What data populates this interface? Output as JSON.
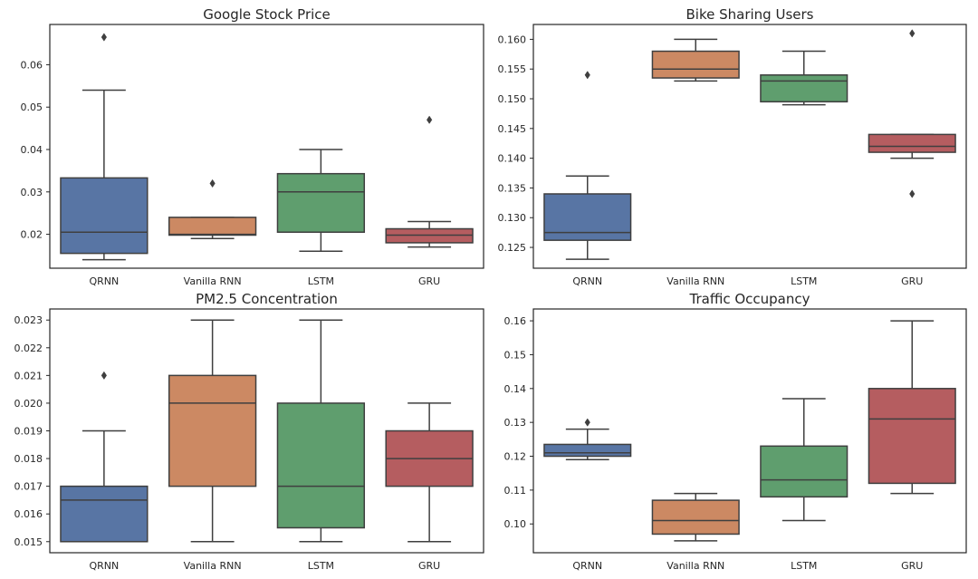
{
  "chart_data": [
    {
      "type": "box",
      "title": "Google Stock Price",
      "categories": [
        "QRNN",
        "Vanilla RNN",
        "LSTM",
        "GRU"
      ],
      "ylim": [
        0.012,
        0.0695
      ],
      "yticks": [
        0.02,
        0.03,
        0.04,
        0.05,
        0.06
      ],
      "yticklabels": [
        "0.02",
        "0.03",
        "0.04",
        "0.05",
        "0.06"
      ],
      "boxes": [
        {
          "whislo": 0.014,
          "q1": 0.0155,
          "med": 0.0205,
          "q3": 0.0333,
          "whishi": 0.054,
          "fliers": [
            0.0665
          ]
        },
        {
          "whislo": 0.019,
          "q1": 0.0198,
          "med": 0.02,
          "q3": 0.024,
          "whishi": 0.024,
          "fliers": [
            0.032
          ]
        },
        {
          "whislo": 0.016,
          "q1": 0.0205,
          "med": 0.03,
          "q3": 0.0343,
          "whishi": 0.04,
          "fliers": []
        },
        {
          "whislo": 0.017,
          "q1": 0.018,
          "med": 0.0198,
          "q3": 0.0213,
          "whishi": 0.023,
          "fliers": [
            0.047
          ]
        }
      ],
      "grid": false
    },
    {
      "type": "box",
      "title": "Bike Sharing Users",
      "categories": [
        "QRNN",
        "Vanilla RNN",
        "LSTM",
        "GRU"
      ],
      "ylim": [
        0.1215,
        0.1625
      ],
      "yticks": [
        0.125,
        0.13,
        0.135,
        0.14,
        0.145,
        0.15,
        0.155,
        0.16
      ],
      "yticklabels": [
        "0.125",
        "0.130",
        "0.135",
        "0.140",
        "0.145",
        "0.150",
        "0.155",
        "0.160"
      ],
      "boxes": [
        {
          "whislo": 0.123,
          "q1": 0.1262,
          "med": 0.1275,
          "q3": 0.134,
          "whishi": 0.137,
          "fliers": [
            0.154
          ]
        },
        {
          "whislo": 0.153,
          "q1": 0.1535,
          "med": 0.155,
          "q3": 0.158,
          "whishi": 0.16,
          "fliers": []
        },
        {
          "whislo": 0.149,
          "q1": 0.1495,
          "med": 0.153,
          "q3": 0.154,
          "whishi": 0.158,
          "fliers": []
        },
        {
          "whislo": 0.14,
          "q1": 0.141,
          "med": 0.142,
          "q3": 0.144,
          "whishi": 0.144,
          "fliers": [
            0.161,
            0.134
          ]
        }
      ],
      "grid": false
    },
    {
      "type": "box",
      "title": "PM2.5 Concentration",
      "categories": [
        "QRNN",
        "Vanilla RNN",
        "LSTM",
        "GRU"
      ],
      "ylim": [
        0.0146,
        0.0234
      ],
      "yticks": [
        0.015,
        0.016,
        0.017,
        0.018,
        0.019,
        0.02,
        0.021,
        0.022,
        0.023
      ],
      "yticklabels": [
        "0.015",
        "0.016",
        "0.017",
        "0.018",
        "0.019",
        "0.020",
        "0.021",
        "0.022",
        "0.023"
      ],
      "boxes": [
        {
          "whislo": 0.015,
          "q1": 0.015,
          "med": 0.0165,
          "q3": 0.017,
          "whishi": 0.019,
          "fliers": [
            0.021
          ]
        },
        {
          "whislo": 0.015,
          "q1": 0.017,
          "med": 0.02,
          "q3": 0.021,
          "whishi": 0.023,
          "fliers": []
        },
        {
          "whislo": 0.015,
          "q1": 0.0155,
          "med": 0.017,
          "q3": 0.02,
          "whishi": 0.023,
          "fliers": []
        },
        {
          "whislo": 0.015,
          "q1": 0.017,
          "med": 0.018,
          "q3": 0.019,
          "whishi": 0.02,
          "fliers": []
        }
      ],
      "grid": false
    },
    {
      "type": "box",
      "title": "Traffic Occupancy",
      "categories": [
        "QRNN",
        "Vanilla RNN",
        "LSTM",
        "GRU"
      ],
      "ylim": [
        0.0915,
        0.1635
      ],
      "yticks": [
        0.1,
        0.11,
        0.12,
        0.13,
        0.14,
        0.15,
        0.16
      ],
      "yticklabels": [
        "0.10",
        "0.11",
        "0.12",
        "0.13",
        "0.14",
        "0.15",
        "0.16"
      ],
      "boxes": [
        {
          "whislo": 0.119,
          "q1": 0.12,
          "med": 0.121,
          "q3": 0.1235,
          "whishi": 0.128,
          "fliers": [
            0.13
          ]
        },
        {
          "whislo": 0.095,
          "q1": 0.097,
          "med": 0.101,
          "q3": 0.107,
          "whishi": 0.109,
          "fliers": []
        },
        {
          "whislo": 0.101,
          "q1": 0.108,
          "med": 0.113,
          "q3": 0.123,
          "whishi": 0.137,
          "fliers": []
        },
        {
          "whislo": 0.109,
          "q1": 0.112,
          "med": 0.131,
          "q3": 0.14,
          "whishi": 0.16,
          "fliers": []
        }
      ],
      "grid": false
    }
  ],
  "colors": {
    "QRNN": "#5875a4",
    "Vanilla RNN": "#cc8963",
    "LSTM": "#5f9e6e",
    "GRU": "#b55d60",
    "lines": "#3f3f3f",
    "axes": "#262626"
  }
}
